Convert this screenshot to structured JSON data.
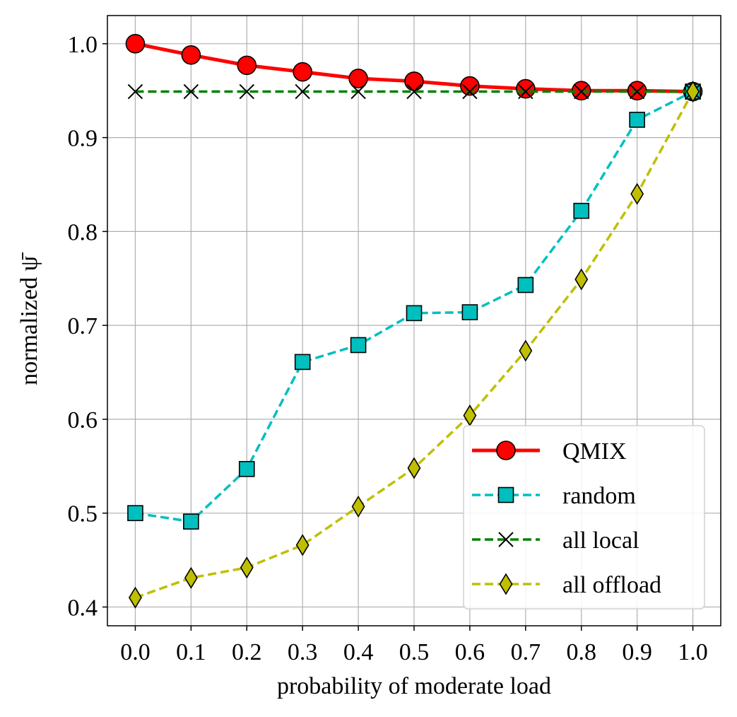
{
  "chart_data": {
    "type": "line",
    "xlabel": "probability of moderate load",
    "ylabel": "normalized ψ̄",
    "x": [
      0.0,
      0.1,
      0.2,
      0.3,
      0.4,
      0.5,
      0.6,
      0.7,
      0.8,
      0.9,
      1.0
    ],
    "x_tick_labels": [
      "0.0",
      "0.1",
      "0.2",
      "0.3",
      "0.4",
      "0.5",
      "0.6",
      "0.7",
      "0.8",
      "0.9",
      "1.0"
    ],
    "y_ticks": [
      0.4,
      0.5,
      0.6,
      0.7,
      0.8,
      0.9,
      1.0
    ],
    "y_tick_labels": [
      "0.4",
      "0.5",
      "0.6",
      "0.7",
      "0.8",
      "0.9",
      "1.0"
    ],
    "xlim": [
      -0.05,
      1.05
    ],
    "ylim": [
      0.38,
      1.03
    ],
    "grid": true,
    "legend_position": "lower-right",
    "series": [
      {
        "name": "QMIX",
        "values": [
          1.0,
          0.988,
          0.977,
          0.97,
          0.963,
          0.96,
          0.955,
          0.952,
          0.95,
          0.95,
          0.949
        ],
        "color": "#ff0000",
        "line_style": "solid",
        "marker": "circle",
        "marker_color": "#ff0000"
      },
      {
        "name": "random",
        "values": [
          0.5,
          0.491,
          0.547,
          0.661,
          0.679,
          0.713,
          0.714,
          0.743,
          0.822,
          0.919,
          0.949
        ],
        "color": "#00bfbf",
        "line_style": "dashed",
        "marker": "square",
        "marker_color": "#00bfbf"
      },
      {
        "name": "all local",
        "values": [
          0.949,
          0.949,
          0.949,
          0.949,
          0.949,
          0.949,
          0.949,
          0.949,
          0.949,
          0.949,
          0.949
        ],
        "color": "#008000",
        "line_style": "dashed",
        "marker": "x",
        "marker_color": "#000000"
      },
      {
        "name": "all offload",
        "values": [
          0.41,
          0.431,
          0.442,
          0.466,
          0.507,
          0.548,
          0.604,
          0.673,
          0.749,
          0.84,
          0.949
        ],
        "color": "#bfbf00",
        "line_style": "dashed",
        "marker": "diamond",
        "marker_color": "#bfbf00"
      }
    ]
  }
}
